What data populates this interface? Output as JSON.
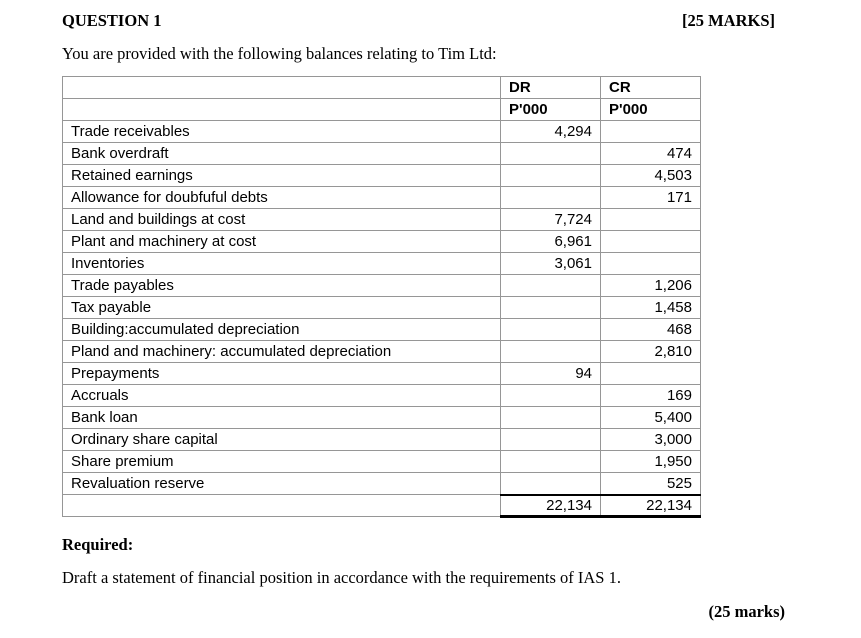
{
  "header": {
    "question_title": "QUESTION 1",
    "marks_badge": "[25 MARKS]"
  },
  "intro_text": "You are provided with the following balances relating to Tim Ltd:",
  "table": {
    "columns": {
      "dr": "DR",
      "cr": "CR"
    },
    "units": {
      "dr": "P'000",
      "cr": "P'000"
    },
    "rows": [
      {
        "label": "Trade receivables",
        "dr": "4,294",
        "cr": ""
      },
      {
        "label": "Bank overdraft",
        "dr": "",
        "cr": "474"
      },
      {
        "label": "Retained earnings",
        "dr": "",
        "cr": "4,503"
      },
      {
        "label": "Allowance for doubfuful debts",
        "dr": "",
        "cr": "171"
      },
      {
        "label": "Land and buildings at cost",
        "dr": "7,724",
        "cr": ""
      },
      {
        "label": "Plant and machinery at cost",
        "dr": "6,961",
        "cr": ""
      },
      {
        "label": "Inventories",
        "dr": "3,061",
        "cr": ""
      },
      {
        "label": "Trade payables",
        "dr": "",
        "cr": "1,206"
      },
      {
        "label": "Tax payable",
        "dr": "",
        "cr": "1,458"
      },
      {
        "label": "Building:accumulated depreciation",
        "dr": "",
        "cr": "468"
      },
      {
        "label": "Pland and machinery: accumulated depreciation",
        "dr": "",
        "cr": "2,810"
      },
      {
        "label": "Prepayments",
        "dr": "94",
        "cr": ""
      },
      {
        "label": "Accruals",
        "dr": "",
        "cr": "169"
      },
      {
        "label": "Bank loan",
        "dr": "",
        "cr": "5,400"
      },
      {
        "label": "Ordinary share capital",
        "dr": "",
        "cr": "3,000"
      },
      {
        "label": "Share premium",
        "dr": "",
        "cr": "1,950"
      },
      {
        "label": "Revaluation reserve",
        "dr": "",
        "cr": "525"
      }
    ],
    "totals": {
      "dr": "22,134",
      "cr": "22,134"
    }
  },
  "required_label": "Required:",
  "instruction_text": "Draft a statement of financial position in accordance with the requirements of IAS 1.",
  "marks_footer": "(25 marks)"
}
